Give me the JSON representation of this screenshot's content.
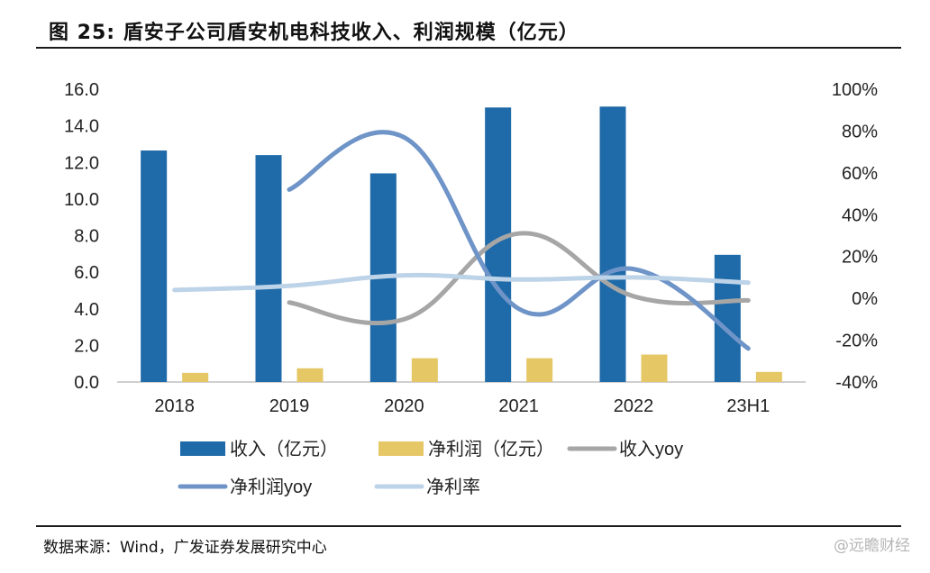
{
  "title": "图  25:  盾安子公司盾安机电科技收入、利润规模（亿元）",
  "source": "数据来源：Wind，广发证券发展研究中心",
  "watermark": "@远瞻财经",
  "chart_data": {
    "type": "bar",
    "categories": [
      "2018",
      "2019",
      "2020",
      "2021",
      "2022",
      "23H1"
    ],
    "y_left": {
      "min": 0,
      "max": 16,
      "ticks": [
        "0.0",
        "2.0",
        "4.0",
        "6.0",
        "8.0",
        "10.0",
        "12.0",
        "14.0",
        "16.0"
      ]
    },
    "y_right": {
      "min": -40,
      "max": 100,
      "ticks": [
        "-40%",
        "-20%",
        "0%",
        "20%",
        "40%",
        "60%",
        "80%",
        "100%"
      ]
    },
    "bars": [
      {
        "name": "收入（亿元）",
        "color": "#1f6aa8",
        "values": [
          12.65,
          12.4,
          11.4,
          15.0,
          15.05,
          6.95
        ]
      },
      {
        "name": "净利润（亿元）",
        "color": "#e5c766",
        "values": [
          0.5,
          0.75,
          1.3,
          1.3,
          1.5,
          0.55
        ]
      }
    ],
    "lines": [
      {
        "name": "收入yoy",
        "color": "#a6a6a6",
        "axis": "right",
        "values": [
          null,
          -2,
          -10,
          31,
          1,
          -1
        ]
      },
      {
        "name": "净利润yoy",
        "color": "#6f94c8",
        "axis": "right",
        "values": [
          null,
          52,
          77,
          -5,
          14,
          -24
        ]
      },
      {
        "name": "净利率",
        "color": "#bdd3e8",
        "axis": "right",
        "values": [
          4,
          6,
          11,
          9,
          10,
          7.5
        ]
      }
    ],
    "legend": {
      "rows": [
        [
          "收入（亿元）",
          "净利润（亿元）",
          "收入yoy"
        ],
        [
          "净利润yoy",
          "净利率"
        ]
      ]
    },
    "grid": false
  }
}
